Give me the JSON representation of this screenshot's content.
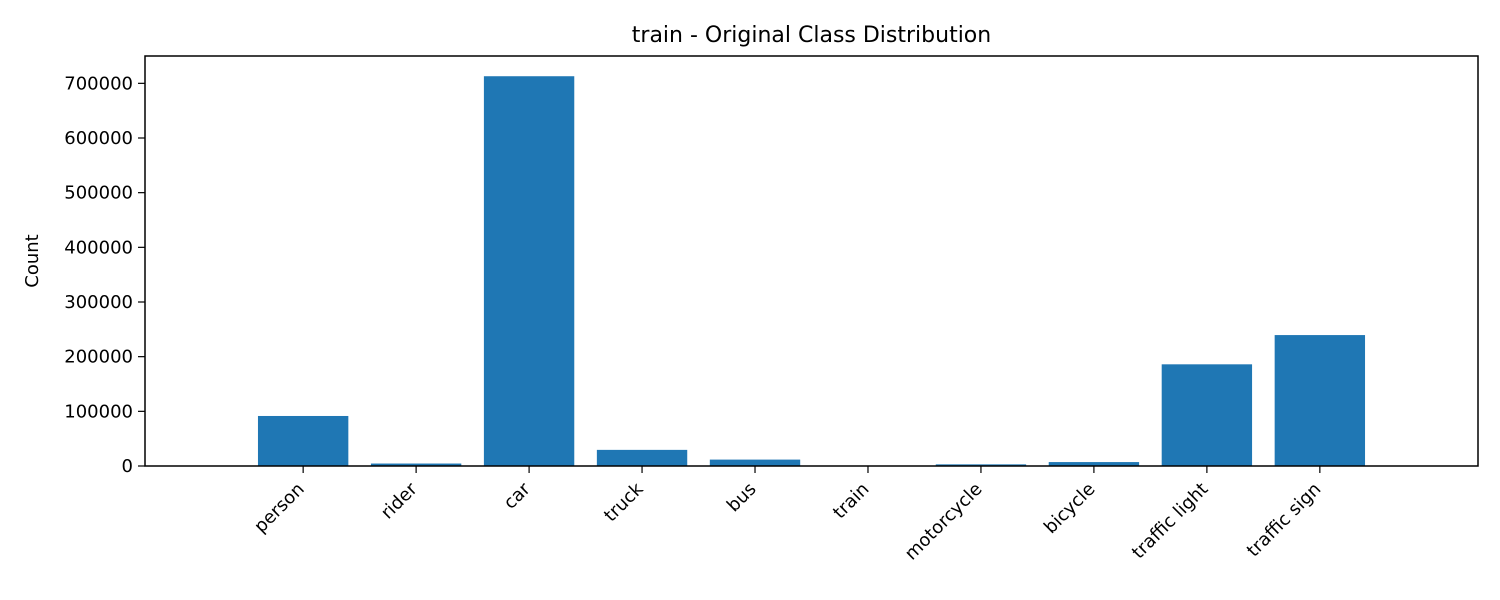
{
  "chart_data": {
    "type": "bar",
    "title": "train - Original Class Distribution",
    "xlabel": "",
    "ylabel": "Count",
    "categories": [
      "person",
      "rider",
      "car",
      "truck",
      "bus",
      "train",
      "motorcycle",
      "bicycle",
      "traffic light",
      "traffic sign"
    ],
    "values": [
      91500,
      4500,
      713000,
      29500,
      11700,
      140,
      3000,
      7200,
      186000,
      239500
    ],
    "ylim": [
      0,
      750000
    ],
    "yticks": [
      0,
      100000,
      200000,
      300000,
      400000,
      500000,
      600000,
      700000
    ],
    "ytick_labels": [
      "0",
      "100000",
      "200000",
      "300000",
      "400000",
      "500000",
      "600000",
      "700000"
    ],
    "bar_color": "#1f77b4",
    "grid": false,
    "legend": "none"
  }
}
